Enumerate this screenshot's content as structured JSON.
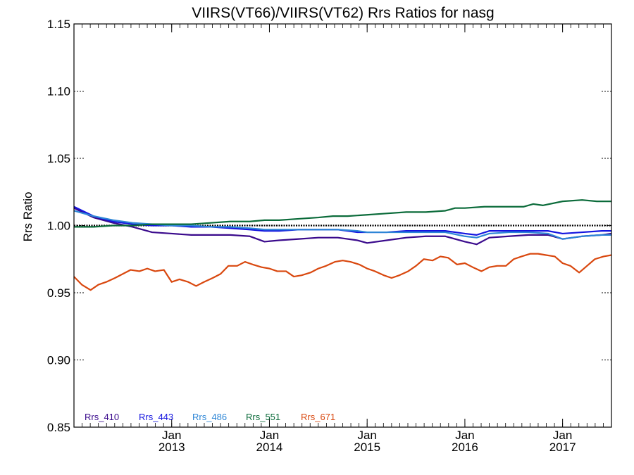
{
  "chart_data": {
    "type": "line",
    "title": "VIIRS(VT66)/VIIRS(VT62)  Rrs Ratios for nasg",
    "ylabel": "Rrs Ratio",
    "xlabel": "",
    "ylim": [
      0.85,
      1.15
    ],
    "xlim": [
      2012.0,
      2017.5
    ],
    "y_ticks": [
      "0.85",
      "0.90",
      "0.95",
      "1.00",
      "1.05",
      "1.10",
      "1.15"
    ],
    "x_ticks": [
      {
        "x": 2013.0,
        "month": "Jan",
        "year": "2013"
      },
      {
        "x": 2014.0,
        "month": "Jan",
        "year": "2014"
      },
      {
        "x": 2015.0,
        "month": "Jan",
        "year": "2015"
      },
      {
        "x": 2016.0,
        "month": "Jan",
        "year": "2016"
      },
      {
        "x": 2017.0,
        "month": "Jan",
        "year": "2017"
      }
    ],
    "reference_line": 1.0,
    "series": [
      {
        "name": "Rrs_410",
        "color": "#3a0a8c",
        "points": [
          [
            2012.0,
            1.013
          ],
          [
            2012.2,
            1.006
          ],
          [
            2012.4,
            1.002
          ],
          [
            2012.6,
            0.999
          ],
          [
            2012.8,
            0.995
          ],
          [
            2013.0,
            0.994
          ],
          [
            2013.2,
            0.993
          ],
          [
            2013.4,
            0.993
          ],
          [
            2013.6,
            0.993
          ],
          [
            2013.8,
            0.992
          ],
          [
            2013.95,
            0.988
          ],
          [
            2014.1,
            0.989
          ],
          [
            2014.3,
            0.99
          ],
          [
            2014.5,
            0.991
          ],
          [
            2014.7,
            0.991
          ],
          [
            2014.9,
            0.989
          ],
          [
            2015.0,
            0.987
          ],
          [
            2015.2,
            0.989
          ],
          [
            2015.4,
            0.991
          ],
          [
            2015.6,
            0.992
          ],
          [
            2015.8,
            0.992
          ],
          [
            2016.0,
            0.988
          ],
          [
            2016.12,
            0.986
          ],
          [
            2016.25,
            0.991
          ],
          [
            2016.45,
            0.992
          ],
          [
            2016.65,
            0.993
          ],
          [
            2016.85,
            0.993
          ],
          [
            2017.0,
            0.99
          ],
          [
            2017.2,
            0.992
          ],
          [
            2017.4,
            0.993
          ],
          [
            2017.5,
            0.994
          ]
        ]
      },
      {
        "name": "Rrs_443",
        "color": "#1414e0",
        "points": [
          [
            2012.0,
            1.014
          ],
          [
            2012.2,
            1.007
          ],
          [
            2012.4,
            1.003
          ],
          [
            2012.6,
            1.001
          ],
          [
            2012.8,
            1.0
          ],
          [
            2013.0,
            1.0
          ],
          [
            2013.2,
            0.999
          ],
          [
            2013.4,
            0.999
          ],
          [
            2013.6,
            0.998
          ],
          [
            2013.8,
            0.997
          ],
          [
            2013.95,
            0.996
          ],
          [
            2014.1,
            0.996
          ],
          [
            2014.3,
            0.997
          ],
          [
            2014.5,
            0.997
          ],
          [
            2014.7,
            0.997
          ],
          [
            2014.9,
            0.995
          ],
          [
            2015.0,
            0.995
          ],
          [
            2015.2,
            0.995
          ],
          [
            2015.4,
            0.996
          ],
          [
            2015.6,
            0.996
          ],
          [
            2015.8,
            0.996
          ],
          [
            2016.0,
            0.994
          ],
          [
            2016.12,
            0.993
          ],
          [
            2016.25,
            0.996
          ],
          [
            2016.45,
            0.996
          ],
          [
            2016.65,
            0.996
          ],
          [
            2016.85,
            0.996
          ],
          [
            2017.0,
            0.994
          ],
          [
            2017.2,
            0.995
          ],
          [
            2017.4,
            0.996
          ],
          [
            2017.5,
            0.996
          ]
        ]
      },
      {
        "name": "Rrs_486",
        "color": "#2e86d6",
        "points": [
          [
            2012.0,
            1.011
          ],
          [
            2012.2,
            1.007
          ],
          [
            2012.4,
            1.004
          ],
          [
            2012.6,
            1.002
          ],
          [
            2012.8,
            1.001
          ],
          [
            2013.0,
            1.0
          ],
          [
            2013.2,
            1.0
          ],
          [
            2013.4,
            0.999
          ],
          [
            2013.6,
            0.999
          ],
          [
            2013.8,
            0.998
          ],
          [
            2013.95,
            0.997
          ],
          [
            2014.1,
            0.997
          ],
          [
            2014.3,
            0.997
          ],
          [
            2014.5,
            0.997
          ],
          [
            2014.7,
            0.997
          ],
          [
            2014.9,
            0.996
          ],
          [
            2015.0,
            0.995
          ],
          [
            2015.2,
            0.995
          ],
          [
            2015.4,
            0.995
          ],
          [
            2015.6,
            0.995
          ],
          [
            2015.8,
            0.995
          ],
          [
            2016.0,
            0.992
          ],
          [
            2016.12,
            0.991
          ],
          [
            2016.25,
            0.994
          ],
          [
            2016.45,
            0.995
          ],
          [
            2016.65,
            0.995
          ],
          [
            2016.85,
            0.994
          ],
          [
            2017.0,
            0.99
          ],
          [
            2017.2,
            0.992
          ],
          [
            2017.4,
            0.993
          ],
          [
            2017.5,
            0.993
          ]
        ]
      },
      {
        "name": "Rrs_551",
        "color": "#0b6b3a",
        "points": [
          [
            2012.0,
            0.999
          ],
          [
            2012.2,
            0.999
          ],
          [
            2012.4,
            1.0
          ],
          [
            2012.6,
            1.0
          ],
          [
            2012.8,
            1.001
          ],
          [
            2013.0,
            1.001
          ],
          [
            2013.2,
            1.001
          ],
          [
            2013.4,
            1.002
          ],
          [
            2013.6,
            1.003
          ],
          [
            2013.8,
            1.003
          ],
          [
            2013.95,
            1.004
          ],
          [
            2014.1,
            1.004
          ],
          [
            2014.3,
            1.005
          ],
          [
            2014.5,
            1.006
          ],
          [
            2014.65,
            1.007
          ],
          [
            2014.8,
            1.007
          ],
          [
            2015.0,
            1.008
          ],
          [
            2015.2,
            1.009
          ],
          [
            2015.4,
            1.01
          ],
          [
            2015.6,
            1.01
          ],
          [
            2015.8,
            1.011
          ],
          [
            2015.9,
            1.013
          ],
          [
            2016.0,
            1.013
          ],
          [
            2016.2,
            1.014
          ],
          [
            2016.4,
            1.014
          ],
          [
            2016.6,
            1.014
          ],
          [
            2016.7,
            1.016
          ],
          [
            2016.8,
            1.015
          ],
          [
            2017.0,
            1.018
          ],
          [
            2017.2,
            1.019
          ],
          [
            2017.35,
            1.018
          ],
          [
            2017.5,
            1.018
          ]
        ]
      },
      {
        "name": "Rrs_671",
        "color": "#d9480f",
        "points": [
          [
            2012.0,
            0.962
          ],
          [
            2012.08,
            0.956
          ],
          [
            2012.17,
            0.952
          ],
          [
            2012.25,
            0.956
          ],
          [
            2012.33,
            0.958
          ],
          [
            2012.42,
            0.961
          ],
          [
            2012.5,
            0.964
          ],
          [
            2012.58,
            0.967
          ],
          [
            2012.67,
            0.966
          ],
          [
            2012.75,
            0.968
          ],
          [
            2012.83,
            0.966
          ],
          [
            2012.92,
            0.967
          ],
          [
            2013.0,
            0.958
          ],
          [
            2013.08,
            0.96
          ],
          [
            2013.17,
            0.958
          ],
          [
            2013.25,
            0.955
          ],
          [
            2013.33,
            0.958
          ],
          [
            2013.42,
            0.961
          ],
          [
            2013.5,
            0.964
          ],
          [
            2013.58,
            0.97
          ],
          [
            2013.67,
            0.97
          ],
          [
            2013.75,
            0.973
          ],
          [
            2013.83,
            0.971
          ],
          [
            2013.92,
            0.969
          ],
          [
            2014.0,
            0.968
          ],
          [
            2014.08,
            0.966
          ],
          [
            2014.17,
            0.966
          ],
          [
            2014.25,
            0.962
          ],
          [
            2014.33,
            0.963
          ],
          [
            2014.42,
            0.965
          ],
          [
            2014.5,
            0.968
          ],
          [
            2014.58,
            0.97
          ],
          [
            2014.67,
            0.973
          ],
          [
            2014.75,
            0.974
          ],
          [
            2014.83,
            0.973
          ],
          [
            2014.92,
            0.971
          ],
          [
            2015.0,
            0.968
          ],
          [
            2015.08,
            0.966
          ],
          [
            2015.17,
            0.963
          ],
          [
            2015.25,
            0.961
          ],
          [
            2015.33,
            0.963
          ],
          [
            2015.42,
            0.966
          ],
          [
            2015.5,
            0.97
          ],
          [
            2015.58,
            0.975
          ],
          [
            2015.67,
            0.974
          ],
          [
            2015.75,
            0.977
          ],
          [
            2015.83,
            0.976
          ],
          [
            2015.92,
            0.971
          ],
          [
            2016.0,
            0.972
          ],
          [
            2016.08,
            0.969
          ],
          [
            2016.17,
            0.966
          ],
          [
            2016.25,
            0.969
          ],
          [
            2016.33,
            0.97
          ],
          [
            2016.42,
            0.97
          ],
          [
            2016.5,
            0.975
          ],
          [
            2016.58,
            0.977
          ],
          [
            2016.67,
            0.979
          ],
          [
            2016.75,
            0.979
          ],
          [
            2016.83,
            0.978
          ],
          [
            2016.92,
            0.977
          ],
          [
            2017.0,
            0.972
          ],
          [
            2017.08,
            0.97
          ],
          [
            2017.17,
            0.965
          ],
          [
            2017.25,
            0.97
          ],
          [
            2017.33,
            0.975
          ],
          [
            2017.42,
            0.977
          ],
          [
            2017.5,
            0.978
          ]
        ]
      }
    ],
    "legend_placement": "bottom-left",
    "grid": false
  }
}
